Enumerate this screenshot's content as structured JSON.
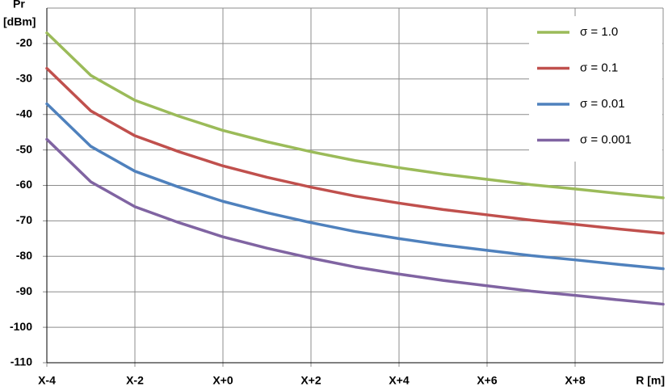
{
  "chart_data": {
    "type": "line",
    "y_label": {
      "name": "Pr",
      "unit": "[dBm]"
    },
    "x_label": "R [m]",
    "x": [
      -4,
      -3,
      -2,
      -1,
      0,
      1,
      2,
      3,
      4,
      5,
      6,
      7,
      8,
      9,
      10
    ],
    "series": [
      {
        "name": "σ = 1.0",
        "color": "#9bbb59",
        "values": [
          -17,
          -29,
          -36,
          -40.5,
          -44.5,
          -47.7,
          -50.5,
          -53,
          -55,
          -56.8,
          -58.3,
          -59.8,
          -61,
          -62.3,
          -63.5
        ]
      },
      {
        "name": "σ = 0.1",
        "color": "#c0504d",
        "values": [
          -27,
          -39,
          -46,
          -50.5,
          -54.5,
          -57.7,
          -60.5,
          -63,
          -65,
          -66.8,
          -68.3,
          -69.8,
          -71,
          -72.3,
          -73.5
        ]
      },
      {
        "name": "σ = 0.01",
        "color": "#4f81bd",
        "values": [
          -37,
          -49,
          -56,
          -60.5,
          -64.5,
          -67.7,
          -70.5,
          -73,
          -75,
          -76.8,
          -78.3,
          -79.8,
          -81,
          -82.3,
          -83.5
        ]
      },
      {
        "name": "σ = 0.001",
        "color": "#8064a2",
        "values": [
          -47,
          -59,
          -66,
          -70.5,
          -74.5,
          -77.7,
          -80.5,
          -83,
          -85,
          -86.8,
          -88.3,
          -89.8,
          -91,
          -92.3,
          -93.5
        ]
      }
    ],
    "xlim": [
      -4,
      10
    ],
    "xticks": [
      {
        "value": -4,
        "label": "X-4"
      },
      {
        "value": -2,
        "label": "X-2"
      },
      {
        "value": 0,
        "label": "X+0"
      },
      {
        "value": 2,
        "label": "X+2"
      },
      {
        "value": 4,
        "label": "X+4"
      },
      {
        "value": 6,
        "label": "X+6"
      },
      {
        "value": 8,
        "label": "X+8"
      }
    ],
    "ylim": [
      -110,
      -10
    ],
    "yticks": [
      -20,
      -30,
      -40,
      -50,
      -60,
      -70,
      -80,
      -90,
      -100,
      -110
    ],
    "grid": true,
    "legend": "upper right"
  }
}
